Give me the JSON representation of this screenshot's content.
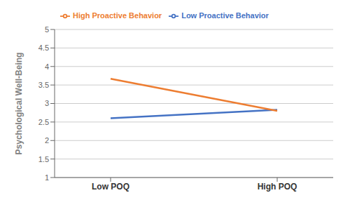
{
  "chart_data": {
    "type": "line",
    "categories": [
      "Low POQ",
      "High POQ"
    ],
    "series": [
      {
        "name": "Low Proactive Behavior",
        "color": "#4472C4",
        "values": [
          2.6,
          2.83
        ]
      },
      {
        "name": "High Proactive Behavior",
        "color": "#ED7D31",
        "values": [
          3.67,
          2.8
        ]
      }
    ],
    "ylabel": "Psychological Well-Being",
    "ylim": [
      1,
      5
    ],
    "yticks": [
      1,
      1.5,
      2,
      2.5,
      3,
      3.5,
      4,
      4.5,
      5
    ],
    "grid": true,
    "legend": "upper left"
  }
}
